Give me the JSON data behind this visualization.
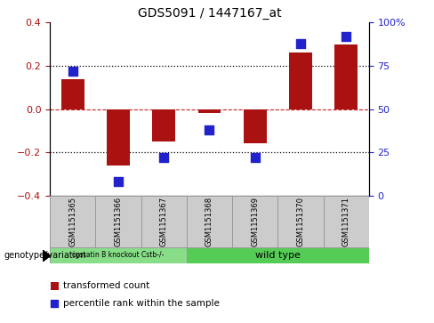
{
  "title": "GDS5091 / 1447167_at",
  "samples": [
    "GSM1151365",
    "GSM1151366",
    "GSM1151367",
    "GSM1151368",
    "GSM1151369",
    "GSM1151370",
    "GSM1151371"
  ],
  "transformed_count": [
    0.14,
    -0.26,
    -0.15,
    -0.02,
    -0.16,
    0.26,
    0.3
  ],
  "percentile_rank": [
    72,
    8,
    22,
    38,
    22,
    88,
    92
  ],
  "ylim_left": [
    -0.4,
    0.4
  ],
  "ylim_right": [
    0,
    100
  ],
  "yticks_left": [
    -0.4,
    -0.2,
    0.0,
    0.2,
    0.4
  ],
  "yticks_right": [
    0,
    25,
    50,
    75,
    100
  ],
  "bar_color": "#AA1111",
  "dot_color": "#2222CC",
  "zero_line_color": "#CC2222",
  "grid_line_color": "#000000",
  "bg_color": "#ffffff",
  "plot_bg": "#ffffff",
  "group1_label": "cystatin B knockout Cstb-/-",
  "group2_label": "wild type",
  "group1_count": 3,
  "group2_count": 4,
  "group_bg1": "#88DD88",
  "group_bg2": "#55CC55",
  "genotype_label": "genotype/variation",
  "legend_bar_label": "transformed count",
  "legend_dot_label": "percentile rank within the sample",
  "bar_width": 0.5,
  "dot_size": 45,
  "sample_box_color": "#CCCCCC",
  "sample_box_edge": "#999999"
}
